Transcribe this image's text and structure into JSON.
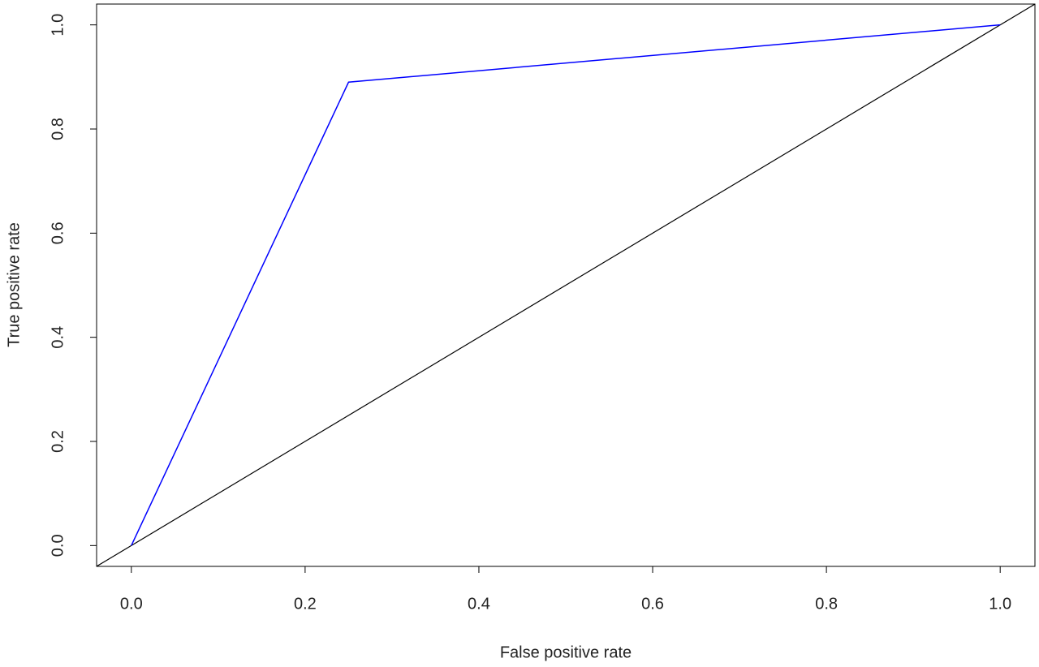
{
  "chart_data": {
    "type": "line",
    "x_label": "False positive rate",
    "y_label": "True positive rate",
    "x": [
      0,
      0.25,
      1
    ],
    "values": [
      0,
      0.89,
      1
    ],
    "color": "#0000ff",
    "abline": {
      "intercept": 0,
      "slope": 1,
      "color": "#000000"
    },
    "xlim": [
      -0.04,
      1.04
    ],
    "ylim": [
      -0.04,
      1.04
    ],
    "xticks": [
      {
        "value": 0,
        "label": "0.0"
      },
      0.2,
      0.4,
      0.6,
      0.8,
      {
        "value": 1,
        "label": "1.0"
      }
    ],
    "yticks": [
      {
        "value": 0,
        "label": "0.0"
      },
      0.2,
      0.4,
      0.6,
      0.8,
      {
        "value": 1,
        "label": "1.0"
      }
    ],
    "grid": false
  }
}
